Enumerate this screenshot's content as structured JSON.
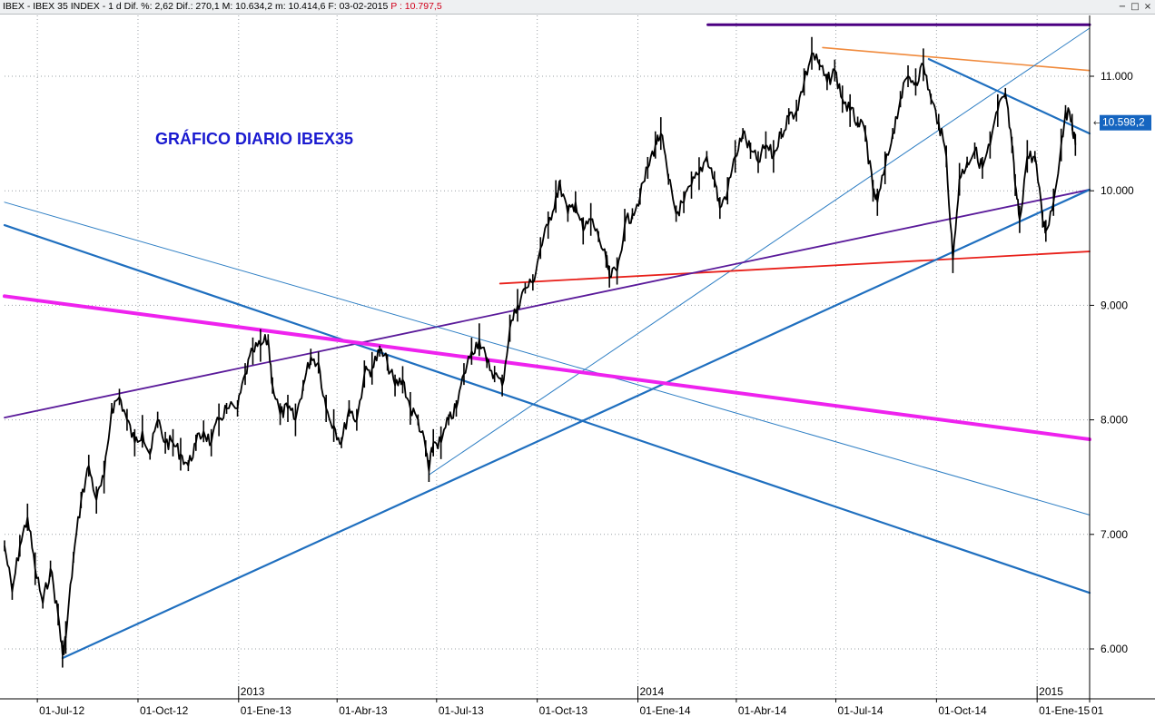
{
  "window": {
    "info_text": "IBEX - IBEX 35 INDEX - 1 d Dif. %: 2,62 Dif.: 270,1 M: 10.634,2 m: 10.414,6 F: 03-02-2015",
    "price_text": "P : 10.797,5",
    "buttons": [
      "−",
      "□",
      "×"
    ]
  },
  "chart_data": {
    "type": "line",
    "title": "GRÁFICO DIARIO IBEX35",
    "title_color": "#1a1ad0",
    "ylim": [
      5600,
      11450
    ],
    "y_ticks": [
      {
        "value": 6000,
        "label": "6.000"
      },
      {
        "value": 7000,
        "label": "7.000"
      },
      {
        "value": 8000,
        "label": "8.000"
      },
      {
        "value": 9000,
        "label": "9.000"
      },
      {
        "value": 10000,
        "label": "10.000"
      },
      {
        "value": 11000,
        "label": "11.000"
      }
    ],
    "x_range": [
      "2012-06-01",
      "2015-02-18"
    ],
    "x_ticks": [
      {
        "date": "2012-07-01",
        "label": "01-Jul-12"
      },
      {
        "date": "2012-10-01",
        "label": "01-Oct-12"
      },
      {
        "date": "2013-01-01",
        "label": "01-Ene-13"
      },
      {
        "date": "2013-04-01",
        "label": "01-Abr-13"
      },
      {
        "date": "2013-07-01",
        "label": "01-Jul-13"
      },
      {
        "date": "2013-10-01",
        "label": "01-Oct-13"
      },
      {
        "date": "2014-01-01",
        "label": "01-Ene-14"
      },
      {
        "date": "2014-04-01",
        "label": "01-Abr-14"
      },
      {
        "date": "2014-07-01",
        "label": "01-Jul-14"
      },
      {
        "date": "2014-10-01",
        "label": "01-Oct-14"
      },
      {
        "date": "2015-01-01",
        "label": "01-Ene-15"
      },
      {
        "date": "2015-02-18",
        "label": "01"
      }
    ],
    "year_labels": [
      {
        "date": "2013-01-01",
        "label": "2013"
      },
      {
        "date": "2014-01-01",
        "label": "2014"
      },
      {
        "date": "2015-01-01",
        "label": "2015"
      }
    ],
    "last_price": {
      "value": 10598.2,
      "label": "10.598,2",
      "color": "#1565c0"
    },
    "series": [
      {
        "color": "#000000",
        "points": [
          [
            "2012-06-01",
            6900
          ],
          [
            "2012-06-08",
            6500
          ],
          [
            "2012-06-15",
            6900
          ],
          [
            "2012-06-22",
            7150
          ],
          [
            "2012-06-29",
            6700
          ],
          [
            "2012-07-06",
            6400
          ],
          [
            "2012-07-13",
            6700
          ],
          [
            "2012-07-20",
            6300
          ],
          [
            "2012-07-24",
            5956
          ],
          [
            "2012-07-27",
            6100
          ],
          [
            "2012-08-03",
            6800
          ],
          [
            "2012-08-10",
            7300
          ],
          [
            "2012-08-17",
            7600
          ],
          [
            "2012-08-24",
            7300
          ],
          [
            "2012-08-31",
            7500
          ],
          [
            "2012-09-07",
            8100
          ],
          [
            "2012-09-14",
            8200
          ],
          [
            "2012-09-21",
            8000
          ],
          [
            "2012-09-28",
            7800
          ],
          [
            "2012-10-05",
            7900
          ],
          [
            "2012-10-12",
            7700
          ],
          [
            "2012-10-19",
            8000
          ],
          [
            "2012-10-26",
            7800
          ],
          [
            "2012-11-02",
            7800
          ],
          [
            "2012-11-09",
            7700
          ],
          [
            "2012-11-16",
            7600
          ],
          [
            "2012-11-23",
            7800
          ],
          [
            "2012-11-30",
            7900
          ],
          [
            "2012-12-07",
            7800
          ],
          [
            "2012-12-14",
            8000
          ],
          [
            "2012-12-21",
            8100
          ],
          [
            "2012-12-31",
            8100
          ],
          [
            "2013-01-07",
            8400
          ],
          [
            "2013-01-14",
            8600
          ],
          [
            "2013-01-21",
            8650
          ],
          [
            "2013-01-28",
            8700
          ],
          [
            "2013-02-01",
            8300
          ],
          [
            "2013-02-08",
            8050
          ],
          [
            "2013-02-15",
            8100
          ],
          [
            "2013-02-22",
            8000
          ],
          [
            "2013-03-01",
            8300
          ],
          [
            "2013-03-08",
            8550
          ],
          [
            "2013-03-15",
            8500
          ],
          [
            "2013-03-22",
            8100
          ],
          [
            "2013-03-29",
            7950
          ],
          [
            "2013-04-05",
            7800
          ],
          [
            "2013-04-12",
            8100
          ],
          [
            "2013-04-19",
            8000
          ],
          [
            "2013-04-26",
            8400
          ],
          [
            "2013-05-03",
            8450
          ],
          [
            "2013-05-10",
            8600
          ],
          [
            "2013-05-17",
            8500
          ],
          [
            "2013-05-24",
            8300
          ],
          [
            "2013-05-31",
            8350
          ],
          [
            "2013-06-07",
            8100
          ],
          [
            "2013-06-14",
            8000
          ],
          [
            "2013-06-21",
            7750
          ],
          [
            "2013-06-24",
            7553
          ],
          [
            "2013-06-28",
            7800
          ],
          [
            "2013-07-05",
            7800
          ],
          [
            "2013-07-12",
            8000
          ],
          [
            "2013-07-19",
            8100
          ],
          [
            "2013-07-26",
            8400
          ],
          [
            "2013-08-02",
            8600
          ],
          [
            "2013-08-09",
            8700
          ],
          [
            "2013-08-16",
            8500
          ],
          [
            "2013-08-23",
            8400
          ],
          [
            "2013-08-30",
            8300
          ],
          [
            "2013-09-06",
            8800
          ],
          [
            "2013-09-13",
            9000
          ],
          [
            "2013-09-20",
            9150
          ],
          [
            "2013-09-27",
            9200
          ],
          [
            "2013-10-04",
            9500
          ],
          [
            "2013-10-11",
            9700
          ],
          [
            "2013-10-18",
            9950
          ],
          [
            "2013-10-22",
            10050
          ],
          [
            "2013-10-29",
            9800
          ],
          [
            "2013-11-05",
            9900
          ],
          [
            "2013-11-12",
            9650
          ],
          [
            "2013-11-19",
            9750
          ],
          [
            "2013-11-26",
            9600
          ],
          [
            "2013-12-03",
            9400
          ],
          [
            "2013-12-06",
            9250
          ],
          [
            "2013-12-13",
            9300
          ],
          [
            "2013-12-20",
            9700
          ],
          [
            "2013-12-27",
            9800
          ],
          [
            "2014-01-03",
            9950
          ],
          [
            "2014-01-10",
            10200
          ],
          [
            "2014-01-17",
            10400
          ],
          [
            "2014-01-22",
            10500
          ],
          [
            "2014-01-29",
            10100
          ],
          [
            "2014-02-05",
            9800
          ],
          [
            "2014-02-12",
            9900
          ],
          [
            "2014-02-19",
            10050
          ],
          [
            "2014-02-26",
            10150
          ],
          [
            "2014-03-05",
            10300
          ],
          [
            "2014-03-12",
            10100
          ],
          [
            "2014-03-17",
            9850
          ],
          [
            "2014-03-24",
            10000
          ],
          [
            "2014-03-31",
            10300
          ],
          [
            "2014-04-07",
            10500
          ],
          [
            "2014-04-14",
            10350
          ],
          [
            "2014-04-21",
            10250
          ],
          [
            "2014-04-28",
            10400
          ],
          [
            "2014-05-05",
            10300
          ],
          [
            "2014-05-12",
            10500
          ],
          [
            "2014-05-19",
            10650
          ],
          [
            "2014-05-26",
            10700
          ],
          [
            "2014-06-02",
            10950
          ],
          [
            "2014-06-09",
            11200
          ],
          [
            "2014-06-16",
            11100
          ],
          [
            "2014-06-23",
            10950
          ],
          [
            "2014-06-30",
            11050
          ],
          [
            "2014-07-07",
            10800
          ],
          [
            "2014-07-14",
            10700
          ],
          [
            "2014-07-21",
            10600
          ],
          [
            "2014-07-28",
            10500
          ],
          [
            "2014-08-04",
            10000
          ],
          [
            "2014-08-08",
            9900
          ],
          [
            "2014-08-15",
            10200
          ],
          [
            "2014-08-22",
            10500
          ],
          [
            "2014-08-29",
            10800
          ],
          [
            "2014-09-05",
            11000
          ],
          [
            "2014-09-12",
            10950
          ],
          [
            "2014-09-19",
            11100
          ],
          [
            "2014-09-26",
            10800
          ],
          [
            "2014-10-03",
            10600
          ],
          [
            "2014-10-10",
            10300
          ],
          [
            "2014-10-16",
            9400
          ],
          [
            "2014-10-22",
            10100
          ],
          [
            "2014-10-29",
            10250
          ],
          [
            "2014-11-05",
            10350
          ],
          [
            "2014-11-12",
            10200
          ],
          [
            "2014-11-19",
            10400
          ],
          [
            "2014-11-26",
            10700
          ],
          [
            "2014-12-03",
            10850
          ],
          [
            "2014-12-09",
            10400
          ],
          [
            "2014-12-12",
            10050
          ],
          [
            "2014-12-16",
            9750
          ],
          [
            "2014-12-23",
            10300
          ],
          [
            "2014-12-30",
            10300
          ],
          [
            "2015-01-06",
            9750
          ],
          [
            "2015-01-09",
            9650
          ],
          [
            "2015-01-16",
            9900
          ],
          [
            "2015-01-23",
            10400
          ],
          [
            "2015-01-27",
            10700
          ],
          [
            "2015-02-02",
            10600
          ],
          [
            "2015-02-05",
            10400
          ]
        ]
      }
    ],
    "trendlines": [
      {
        "color": "#4b0082",
        "width": 3,
        "points": [
          [
            "2014-03-06",
            11450
          ],
          [
            "2015-02-18",
            11450
          ]
        ]
      },
      {
        "color": "#f08a3c",
        "width": 1.6,
        "points": [
          [
            "2014-06-19",
            11250
          ],
          [
            "2015-02-18",
            11050
          ]
        ]
      },
      {
        "color": "#2f7fc4",
        "width": 1,
        "points": [
          [
            "2013-06-24",
            7520
          ],
          [
            "2015-02-18",
            11420
          ]
        ]
      },
      {
        "color": "#1f6fbf",
        "width": 2.2,
        "points": [
          [
            "2014-09-24",
            11150
          ],
          [
            "2015-02-18",
            10500
          ]
        ]
      },
      {
        "color": "#e8201a",
        "width": 1.8,
        "points": [
          [
            "2013-08-28",
            9190
          ],
          [
            "2015-02-18",
            9470
          ]
        ]
      },
      {
        "color": "#5a1a9a",
        "width": 1.8,
        "points": [
          [
            "2012-06-01",
            8020
          ],
          [
            "2015-02-18",
            10010
          ]
        ]
      },
      {
        "color": "#1f6fbf",
        "width": 2.2,
        "points": [
          [
            "2012-07-24",
            5920
          ],
          [
            "2015-02-18",
            10010
          ]
        ]
      },
      {
        "color": "#1f6fbf",
        "width": 2.2,
        "points": [
          [
            "2012-06-01",
            9700
          ],
          [
            "2015-02-18",
            6490
          ]
        ]
      },
      {
        "color": "#2f7fc4",
        "width": 1,
        "points": [
          [
            "2012-06-01",
            9900
          ],
          [
            "2015-02-18",
            7170
          ]
        ]
      },
      {
        "color": "#ee22ee",
        "width": 4,
        "points": [
          [
            "2012-06-01",
            9080
          ],
          [
            "2015-02-18",
            7830
          ]
        ]
      }
    ]
  }
}
